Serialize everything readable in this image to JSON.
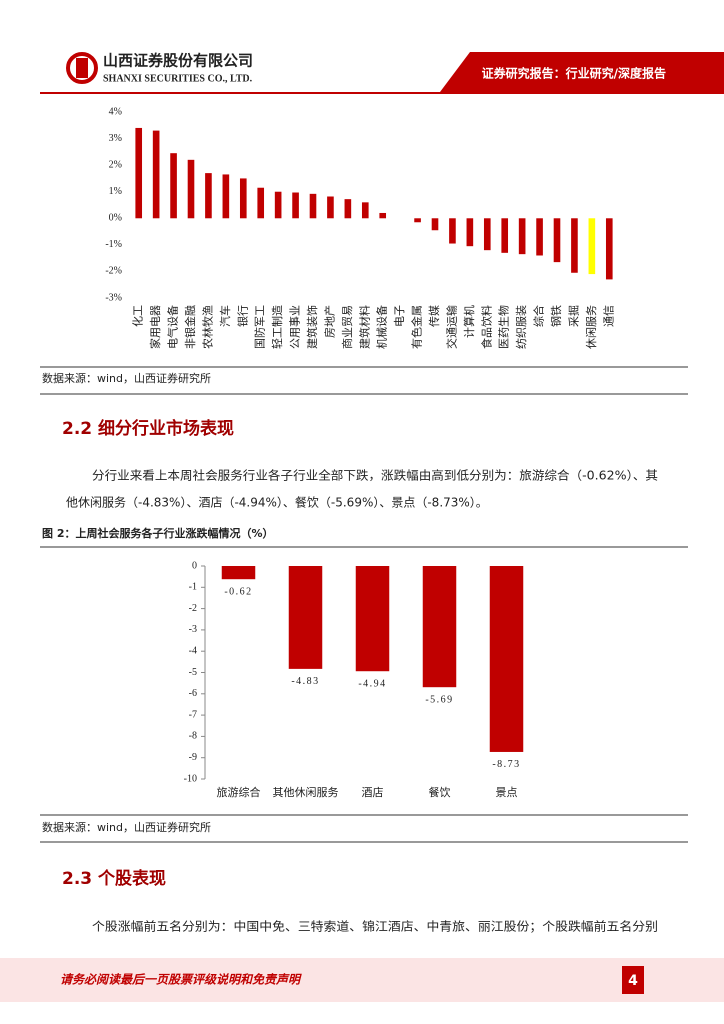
{
  "header": {
    "company_cn": "山西证券股份有限公司",
    "company_en": "SHANXI SECURITIES CO., LTD.",
    "report_type": "证券研究报告：行业研究/深度报告"
  },
  "chart_data": [
    {
      "type": "bar",
      "categories": [
        "化工",
        "家用电器",
        "电气设备",
        "非银金融",
        "农林牧渔",
        "汽车",
        "银行",
        "国防军工",
        "轻工制造",
        "公用事业",
        "建筑装饰",
        "房地产",
        "商业贸易",
        "建筑材料",
        "机械设备",
        "电子",
        "有色金属",
        "传媒",
        "交通运输",
        "计算机",
        "食品饮料",
        "医药生物",
        "纺织服装",
        "综合",
        "钢铁",
        "采掘",
        "休闲服务",
        "通信"
      ],
      "values": [
        3.4,
        3.3,
        2.45,
        2.2,
        1.7,
        1.65,
        1.5,
        1.15,
        1.0,
        0.97,
        0.92,
        0.82,
        0.72,
        0.6,
        0.2,
        0.0,
        -0.15,
        -0.45,
        -0.95,
        -1.05,
        -1.2,
        -1.3,
        -1.35,
        -1.4,
        -1.65,
        -2.05,
        -2.1,
        -2.3
      ],
      "colors": [
        "#c00000",
        "#c00000",
        "#c00000",
        "#c00000",
        "#c00000",
        "#c00000",
        "#c00000",
        "#c00000",
        "#c00000",
        "#c00000",
        "#c00000",
        "#c00000",
        "#c00000",
        "#c00000",
        "#c00000",
        "#c00000",
        "#c00000",
        "#c00000",
        "#c00000",
        "#c00000",
        "#c00000",
        "#c00000",
        "#c00000",
        "#c00000",
        "#c00000",
        "#c00000",
        "#ffff00",
        "#c00000"
      ],
      "ylim": [
        -3,
        4
      ],
      "yticks": [
        {
          "value": -3,
          "label": "-3%"
        },
        {
          "value": -2,
          "label": "-2%"
        },
        {
          "value": -1,
          "label": "-1%"
        },
        {
          "value": 0,
          "label": "0%"
        },
        {
          "value": 1,
          "label": "1%"
        },
        {
          "value": 2,
          "label": "2%"
        },
        {
          "value": 3,
          "label": "3%"
        },
        {
          "value": 4,
          "label": "4%"
        }
      ]
    },
    {
      "type": "bar",
      "categories": [
        "旅游综合",
        "其他休闲服务",
        "酒店",
        "餐饮",
        "景点"
      ],
      "values": [
        -0.62,
        -4.83,
        -4.94,
        -5.69,
        -8.73
      ],
      "color": "#c00000",
      "ylim": [
        -10,
        0
      ],
      "yticks": [
        0,
        -1,
        -2,
        -3,
        -4,
        -5,
        -6,
        -7,
        -8,
        -9,
        -10
      ]
    }
  ],
  "source_1": "数据来源：wind，山西证券研究所",
  "section_2_2": {
    "heading": "2.2 细分行业市场表现",
    "paragraph": [
      "分行业来看上本周社会服务行业各子行业全部下跌，涨跌幅由高到低分别为：旅游综合（-0.62%）、其",
      "他休闲服务（-4.83%）、酒店（-4.94%）、餐饮（-5.69%）、景点（-8.73%）。"
    ]
  },
  "figure_2_caption": "图 2：上周社会服务各子行业涨跌幅情况（%）",
  "source_2": "数据来源：wind，山西证券研究所",
  "section_2_3": {
    "heading": "2.3 个股表现",
    "paragraph": [
      "个股涨幅前五名分别为：中国中免、三特索道、锦江酒店、中青旅、丽江股份；个股跌幅前五名分别"
    ]
  },
  "footer": {
    "disclaimer": "请务必阅读最后一页股票评级说明和免责声明",
    "page": "4"
  }
}
